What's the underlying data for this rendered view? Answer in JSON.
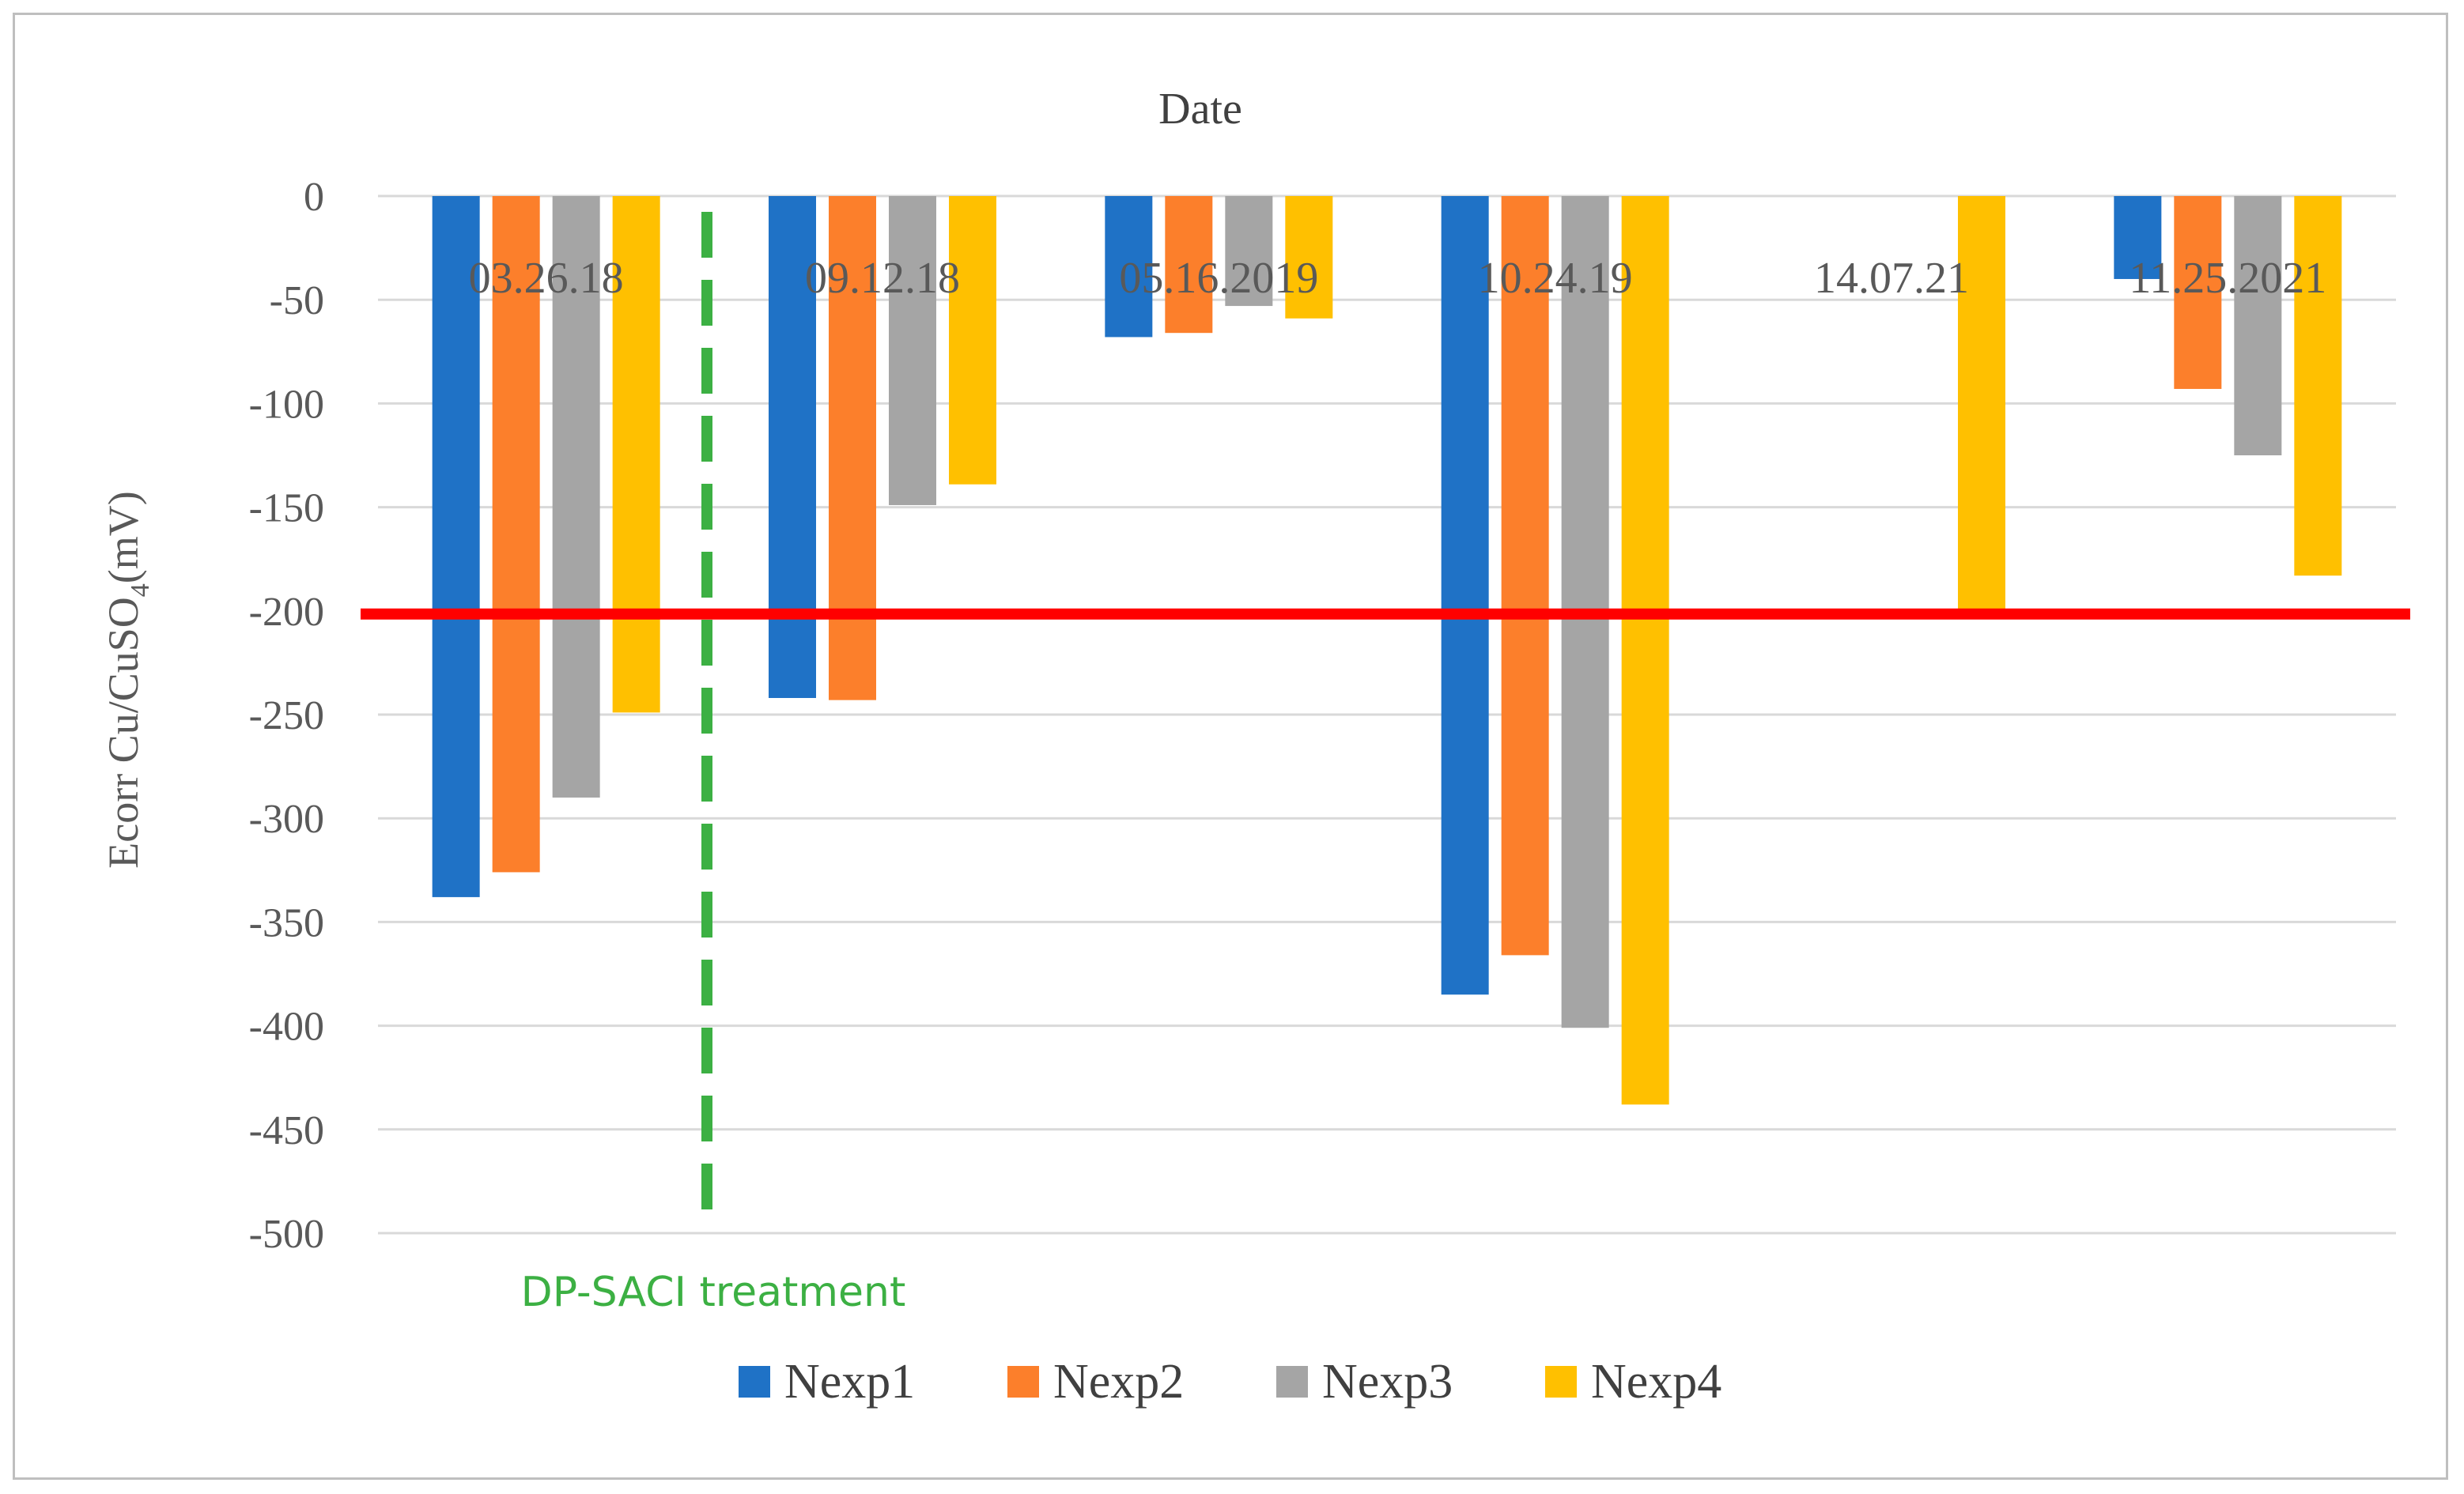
{
  "chart_data": {
    "type": "bar",
    "title": "Date",
    "xlabel": "",
    "ylabel": "Ecorr Cu/CuSO",
    "ylabel_subscript": "4",
    "ylabel_unit": "(mV)",
    "ylim": [
      -500,
      0
    ],
    "yticks": [
      0,
      -50,
      -100,
      -150,
      -200,
      -250,
      -300,
      -350,
      -400,
      -450,
      -500
    ],
    "grid": true,
    "legend_position": "bottom",
    "categories": [
      "03.26.18",
      "09.12.18",
      "05.16.2019",
      "10.24.19",
      "14.07.21",
      "11.25.2021"
    ],
    "series": [
      {
        "name": "Nexp1",
        "color": "#1f72c6",
        "values": [
          -338,
          -242,
          -68,
          -385,
          0,
          -40
        ]
      },
      {
        "name": "Nexp2",
        "color": "#fc7f2b",
        "values": [
          -326,
          -243,
          -66,
          -366,
          0,
          -93
        ]
      },
      {
        "name": "Nexp3",
        "color": "#a5a5a5",
        "values": [
          -290,
          -149,
          -53,
          -401,
          0,
          -125
        ]
      },
      {
        "name": "Nexp4",
        "color": "#ffc000",
        "values": [
          -249,
          -139,
          -59,
          -438,
          -200,
          -183
        ]
      }
    ],
    "annotations": {
      "threshold_line": {
        "value": -200,
        "color": "#ff0000"
      },
      "treatment_marker": {
        "label": "DP-SACI treatment",
        "between_categories": [
          0,
          1
        ],
        "color": "#3cb043"
      }
    }
  }
}
